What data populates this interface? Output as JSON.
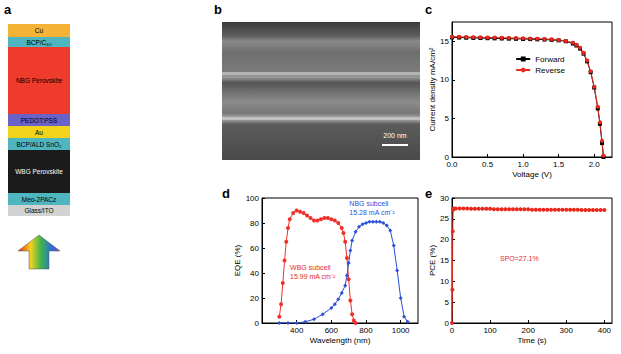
{
  "diagram": {
    "panel_label": "a",
    "layers": [
      {
        "text": "Cu",
        "color": "#f5b335"
      },
      {
        "text": "BCP/C₆₀",
        "color": "#4fb5bf"
      },
      {
        "text": "NBG Perovskite",
        "color": "#ee3b2b"
      },
      {
        "text": "PEDOT:PSS",
        "color": "#6a62c9"
      },
      {
        "text": "Au",
        "color": "#f2d31c"
      },
      {
        "text": "BCP/ALD SnO₂",
        "color": "#4fb5bf"
      },
      {
        "text": "WBG Perovskite",
        "color": "#1b1b1b"
      },
      {
        "text": "Meo-2PACz",
        "color": "#4fb5bf"
      },
      {
        "text": "Glass/ITO",
        "color": "#d3d3d3"
      }
    ]
  },
  "image": {
    "panel_label": "b",
    "scale_bar": "200 nm"
  },
  "chart_data": [
    {
      "type": "line",
      "panel_label": "c",
      "x_label": "Voltage (V)",
      "y_label": "Current density mA/cm²",
      "xlim": [
        0,
        2.25
      ],
      "xticks": [
        {
          "value": 0,
          "label": "0.0"
        },
        {
          "value": 0.5,
          "label": "0.5"
        },
        {
          "value": 1,
          "label": "1.0"
        },
        {
          "value": 1.5,
          "label": "1.5"
        },
        {
          "value": 2,
          "label": "2.0"
        }
      ],
      "ylim": [
        0,
        17.5
      ],
      "yticks": [
        0,
        5,
        10,
        15
      ],
      "legend": "upper right",
      "x": [
        0,
        0.1,
        0.2,
        0.3,
        0.4,
        0.5,
        0.6,
        0.7,
        0.8,
        0.9,
        1.0,
        1.1,
        1.2,
        1.3,
        1.4,
        1.5,
        1.6,
        1.7,
        1.75,
        1.8,
        1.85,
        1.9,
        1.95,
        2.0,
        2.05,
        2.08,
        2.11,
        2.13
      ],
      "series": [
        {
          "name": "Forward",
          "color": "#000000",
          "marker": "square",
          "values": [
            15.5,
            15.48,
            15.46,
            15.44,
            15.42,
            15.4,
            15.38,
            15.36,
            15.34,
            15.32,
            15.3,
            15.28,
            15.25,
            15.22,
            15.18,
            15.12,
            15.0,
            14.7,
            14.45,
            14.05,
            13.4,
            12.4,
            11.0,
            9.0,
            6.3,
            4.3,
            1.8,
            0.0
          ]
        },
        {
          "name": "Reverse",
          "color": "#e8291c",
          "marker": "circle",
          "values": [
            15.6,
            15.58,
            15.56,
            15.54,
            15.52,
            15.5,
            15.48,
            15.46,
            15.44,
            15.42,
            15.4,
            15.37,
            15.34,
            15.3,
            15.25,
            15.18,
            15.05,
            14.8,
            14.55,
            14.15,
            13.5,
            12.5,
            11.1,
            9.1,
            6.5,
            4.5,
            2.1,
            0.2
          ]
        }
      ]
    },
    {
      "type": "line",
      "panel_label": "d",
      "x_label": "Wavelength (nm)",
      "y_label": "EQE (%)",
      "xlim": [
        200,
        1100
      ],
      "xticks": [
        400,
        600,
        800,
        1000
      ],
      "ylim": [
        0,
        100
      ],
      "yticks": [
        0,
        20,
        40,
        60,
        80,
        100
      ],
      "annotations": [
        {
          "lines": [
            "WBG subcell",
            "15.99 mA cm⁻²"
          ],
          "color": "#e8291c"
        },
        {
          "lines": [
            "NBG subcell",
            "15.28 mA cm⁻²"
          ],
          "color": "#2b4fd8"
        }
      ],
      "series": [
        {
          "name": "WBG subcell",
          "color": "#f0302a",
          "marker": "circle",
          "x": [
            300,
            310,
            320,
            330,
            340,
            350,
            360,
            380,
            400,
            420,
            440,
            460,
            480,
            500,
            520,
            540,
            560,
            580,
            600,
            620,
            640,
            660,
            670,
            680,
            690,
            700,
            710,
            720,
            730,
            740
          ],
          "values": [
            5,
            15,
            32,
            50,
            65,
            76,
            83,
            88,
            90,
            89,
            88,
            86,
            84,
            82,
            82,
            83,
            84,
            84,
            83,
            82,
            80,
            76,
            72,
            65,
            52,
            35,
            18,
            7,
            2,
            0
          ]
        },
        {
          "name": "NBG subcell",
          "color": "#2b4fd8",
          "marker": "diamond",
          "x": [
            300,
            350,
            400,
            450,
            500,
            550,
            600,
            620,
            640,
            660,
            680,
            690,
            700,
            710,
            720,
            740,
            760,
            780,
            800,
            820,
            840,
            860,
            880,
            900,
            920,
            940,
            960,
            980,
            1000,
            1020,
            1040
          ],
          "values": [
            0,
            0,
            0,
            1,
            3,
            7,
            12,
            15,
            19,
            24,
            30,
            38,
            48,
            58,
            66,
            73,
            77,
            79,
            80,
            81,
            81,
            81,
            81,
            80,
            78,
            74,
            62,
            42,
            20,
            5,
            1
          ]
        }
      ]
    },
    {
      "type": "line",
      "panel_label": "e",
      "x_label": "Time (s)",
      "y_label": "PCE (%)",
      "xlim": [
        0,
        420
      ],
      "xticks": [
        0,
        100,
        200,
        300,
        400
      ],
      "ylim": [
        0,
        30
      ],
      "yticks": [
        0,
        5,
        10,
        15,
        20,
        25,
        30
      ],
      "annotations": [
        {
          "lines": [
            "SPO=27.1%"
          ],
          "color": "#e8291c"
        }
      ],
      "x": [
        0,
        1,
        2,
        3,
        4,
        10,
        20,
        30,
        40,
        50,
        60,
        70,
        80,
        90,
        100,
        110,
        120,
        130,
        140,
        150,
        160,
        170,
        180,
        190,
        200,
        210,
        220,
        230,
        240,
        250,
        260,
        270,
        280,
        290,
        300,
        310,
        320,
        330,
        340,
        350,
        360,
        370,
        380,
        390,
        400
      ],
      "series": [
        {
          "name": "SPO",
          "color": "#e8291c",
          "marker": "circle",
          "values": [
            0,
            8,
            22,
            27.2,
            27.5,
            27.5,
            27.5,
            27.5,
            27.5,
            27.4,
            27.4,
            27.4,
            27.4,
            27.4,
            27.4,
            27.3,
            27.3,
            27.3,
            27.3,
            27.3,
            27.3,
            27.3,
            27.3,
            27.3,
            27.3,
            27.2,
            27.2,
            27.2,
            27.2,
            27.2,
            27.2,
            27.2,
            27.2,
            27.2,
            27.2,
            27.2,
            27.2,
            27.2,
            27.1,
            27.1,
            27.1,
            27.1,
            27.1,
            27.1,
            27.1
          ]
        }
      ]
    }
  ]
}
